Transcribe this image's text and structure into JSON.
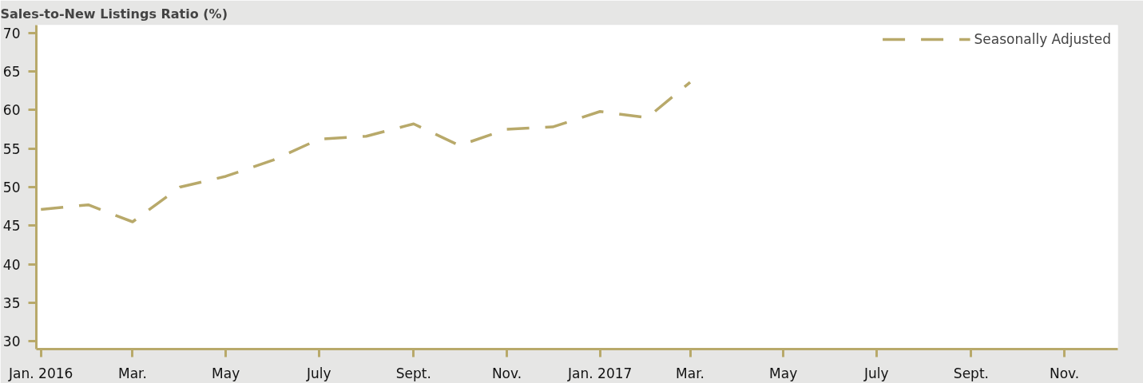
{
  "chart_data": {
    "type": "line",
    "title": "Sales-to-New Listings Ratio (%)",
    "x": [
      "2016-01",
      "2016-02",
      "2016-03",
      "2016-04",
      "2016-05",
      "2016-06",
      "2016-07",
      "2016-08",
      "2016-09",
      "2016-10",
      "2016-11",
      "2016-12",
      "2017-01",
      "2017-02",
      "2017-03"
    ],
    "series": [
      {
        "name": "Seasonally Adjusted",
        "color": "#b8a96a",
        "values": [
          47.1,
          47.7,
          45.5,
          50.0,
          51.4,
          53.5,
          56.2,
          56.6,
          58.2,
          55.4,
          57.5,
          57.8,
          59.8,
          59.0,
          63.6
        ]
      }
    ],
    "xlim": [
      "2015-12-29",
      "2017-12-06"
    ],
    "xticks": [
      {
        "value": "2016-01",
        "label": "Jan. 2016"
      },
      {
        "value": "2016-03",
        "label": "Mar."
      },
      {
        "value": "2016-05",
        "label": "May"
      },
      {
        "value": "2016-07",
        "label": "July"
      },
      {
        "value": "2016-09",
        "label": "Sept."
      },
      {
        "value": "2016-11",
        "label": "Nov."
      },
      {
        "value": "2017-01",
        "label": "Jan. 2017"
      },
      {
        "value": "2017-03",
        "label": "Mar."
      },
      {
        "value": "2017-05",
        "label": "May"
      },
      {
        "value": "2017-07",
        "label": "July"
      },
      {
        "value": "2017-09",
        "label": "Sept."
      },
      {
        "value": "2017-11",
        "label": "Nov."
      }
    ],
    "ylim": [
      29,
      71
    ],
    "yticks": [
      30,
      35,
      40,
      45,
      50,
      55,
      60,
      65,
      70
    ],
    "grid": false,
    "legend": "top right",
    "line_style": "dashed",
    "marker": "none"
  }
}
